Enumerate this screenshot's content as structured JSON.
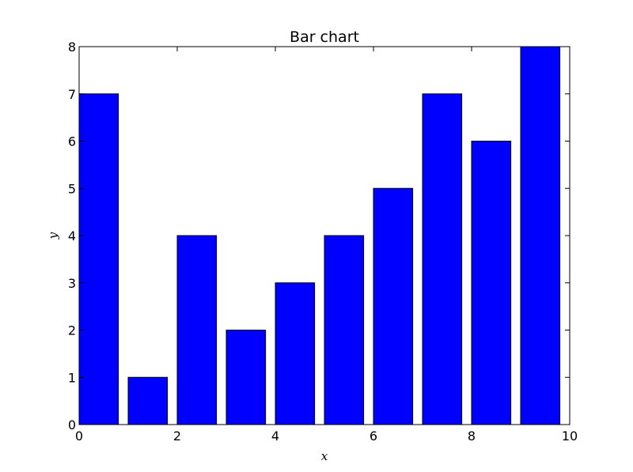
{
  "chart_data": {
    "type": "bar",
    "title": "Bar chart",
    "xlabel": "x",
    "ylabel": "y",
    "x": [
      0,
      1,
      2,
      3,
      4,
      5,
      6,
      7,
      8,
      9
    ],
    "values": [
      7,
      1,
      4,
      2,
      3,
      4,
      5,
      7,
      6,
      8
    ],
    "bar_width": 0.8,
    "xlim": [
      0,
      10
    ],
    "ylim": [
      0,
      8
    ],
    "xticks": [
      0,
      2,
      4,
      6,
      8,
      10
    ],
    "yticks": [
      0,
      1,
      2,
      3,
      4,
      5,
      6,
      7,
      8
    ],
    "grid": false,
    "legend": "none",
    "bar_color": "#0000ff",
    "edge_color": "#000000"
  }
}
